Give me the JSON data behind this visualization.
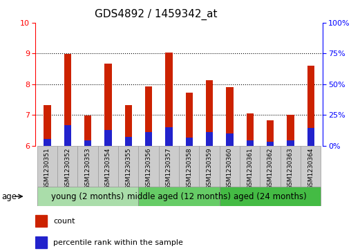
{
  "title": "GDS4892 / 1459342_at",
  "samples": [
    "GSM1230351",
    "GSM1230352",
    "GSM1230353",
    "GSM1230354",
    "GSM1230355",
    "GSM1230356",
    "GSM1230357",
    "GSM1230358",
    "GSM1230359",
    "GSM1230360",
    "GSM1230361",
    "GSM1230362",
    "GSM1230363",
    "GSM1230364"
  ],
  "count_values": [
    7.32,
    8.97,
    6.97,
    8.67,
    7.32,
    7.92,
    9.02,
    7.72,
    8.12,
    7.9,
    7.05,
    6.82,
    7.0,
    8.6
  ],
  "percentile_values": [
    6.22,
    6.67,
    6.18,
    6.5,
    6.28,
    6.45,
    6.6,
    6.27,
    6.45,
    6.4,
    6.17,
    6.13,
    6.18,
    6.58
  ],
  "y_min": 6.0,
  "y_max": 10.0,
  "y_left_ticks": [
    6,
    7,
    8,
    9,
    10
  ],
  "y_right_ticks": [
    0,
    25,
    50,
    75,
    100
  ],
  "y_right_tick_labels": [
    "0%",
    "25%",
    "50%",
    "75%",
    "100%"
  ],
  "groups": [
    {
      "label": "young (2 months)",
      "start": 0,
      "end": 5
    },
    {
      "label": "middle aged (12 months)",
      "start": 5,
      "end": 9
    },
    {
      "label": "aged (24 months)",
      "start": 9,
      "end": 14
    }
  ],
  "group_colors": [
    "#AADDAA",
    "#66CC66",
    "#44BB44"
  ],
  "bar_color": "#CC2200",
  "percentile_color": "#2222CC",
  "grid_color": "black",
  "xlabel_color": "red",
  "ylabel_right_color": "blue",
  "sample_box_color": "#CCCCCC",
  "legend_count_label": "count",
  "legend_percentile_label": "percentile rank within the sample",
  "age_label": "age",
  "title_fontsize": 11,
  "tick_label_fontsize": 8,
  "sample_fontsize": 6.5,
  "group_fontsize": 8.5
}
